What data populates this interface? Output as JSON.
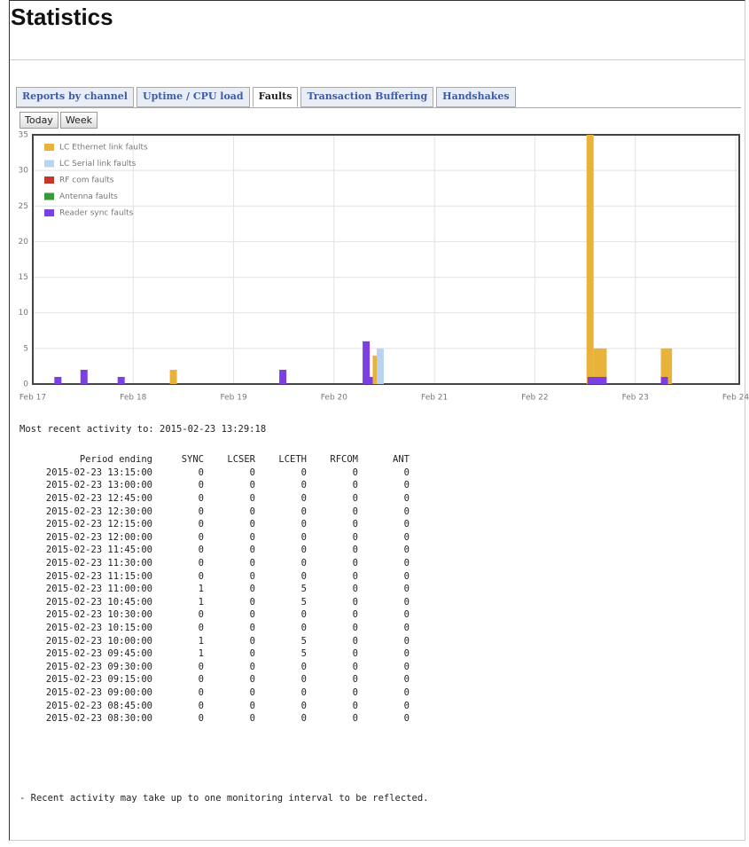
{
  "header": {
    "title": "Statistics"
  },
  "tabs": [
    "Reports by channel",
    "Uptime / CPU load",
    "Faults",
    "Transaction Buffering",
    "Handshakes"
  ],
  "active_tab": 2,
  "buttons": [
    "Today",
    "Week"
  ],
  "chart_data": {
    "type": "bar",
    "xlim": [
      17,
      24
    ],
    "xticks": [
      {
        "value": 17,
        "label": "Feb 17"
      },
      {
        "value": 18,
        "label": "Feb 18"
      },
      {
        "value": 19,
        "label": "Feb 19"
      },
      {
        "value": 20,
        "label": "Feb 20"
      },
      {
        "value": 21,
        "label": "Feb 21"
      },
      {
        "value": 22,
        "label": "Feb 22"
      },
      {
        "value": 23,
        "label": "Feb 23"
      },
      {
        "value": 24,
        "label": "Feb 24"
      }
    ],
    "ylim": [
      0,
      35
    ],
    "yticks": [
      0,
      5,
      10,
      15,
      20,
      25,
      30,
      35
    ],
    "grid": true,
    "legend": "upper left",
    "series": [
      {
        "name": "LC Ethernet link faults",
        "color": "#e8b33a",
        "x": [
          18.4,
          20.42,
          22.55,
          22.62,
          22.68,
          23.29,
          23.33
        ],
        "values": [
          2,
          4,
          35,
          5,
          5,
          5,
          5
        ]
      },
      {
        "name": "LC Serial link faults",
        "color": "#b8d4f0",
        "x": [
          20.46
        ],
        "values": [
          5
        ]
      },
      {
        "name": "RF com faults",
        "color": "#c0392b",
        "x": [],
        "values": []
      },
      {
        "name": "Antenna faults",
        "color": "#3a9a3a",
        "x": [],
        "values": []
      },
      {
        "name": "Reader sync faults",
        "color": "#7b3fe4",
        "x": [
          17.25,
          17.51,
          17.88,
          19.49,
          20.32,
          20.35,
          22.56,
          22.62,
          22.68,
          23.29
        ],
        "values": [
          1,
          2,
          1,
          2,
          6,
          1,
          1,
          1,
          1,
          1
        ]
      }
    ]
  },
  "status": "Most recent activity to: 2015-02-23 13:29:18",
  "table": {
    "columns": [
      "Period ending",
      "SYNC",
      "LCSER",
      "LCETH",
      "RFCOM",
      "ANT"
    ],
    "rows": [
      [
        "2015-02-23 13:15:00",
        0,
        0,
        0,
        0,
        0
      ],
      [
        "2015-02-23 13:00:00",
        0,
        0,
        0,
        0,
        0
      ],
      [
        "2015-02-23 12:45:00",
        0,
        0,
        0,
        0,
        0
      ],
      [
        "2015-02-23 12:30:00",
        0,
        0,
        0,
        0,
        0
      ],
      [
        "2015-02-23 12:15:00",
        0,
        0,
        0,
        0,
        0
      ],
      [
        "2015-02-23 12:00:00",
        0,
        0,
        0,
        0,
        0
      ],
      [
        "2015-02-23 11:45:00",
        0,
        0,
        0,
        0,
        0
      ],
      [
        "2015-02-23 11:30:00",
        0,
        0,
        0,
        0,
        0
      ],
      [
        "2015-02-23 11:15:00",
        0,
        0,
        0,
        0,
        0
      ],
      [
        "2015-02-23 11:00:00",
        1,
        0,
        5,
        0,
        0
      ],
      [
        "2015-02-23 10:45:00",
        1,
        0,
        5,
        0,
        0
      ],
      [
        "2015-02-23 10:30:00",
        0,
        0,
        0,
        0,
        0
      ],
      [
        "2015-02-23 10:15:00",
        0,
        0,
        0,
        0,
        0
      ],
      [
        "2015-02-23 10:00:00",
        1,
        0,
        5,
        0,
        0
      ],
      [
        "2015-02-23 09:45:00",
        1,
        0,
        5,
        0,
        0
      ],
      [
        "2015-02-23 09:30:00",
        0,
        0,
        0,
        0,
        0
      ],
      [
        "2015-02-23 09:15:00",
        0,
        0,
        0,
        0,
        0
      ],
      [
        "2015-02-23 09:00:00",
        0,
        0,
        0,
        0,
        0
      ],
      [
        "2015-02-23 08:45:00",
        0,
        0,
        0,
        0,
        0
      ],
      [
        "2015-02-23 08:30:00",
        0,
        0,
        0,
        0,
        0
      ]
    ]
  },
  "note": "- Recent activity may take up to one monitoring interval to be reflected."
}
